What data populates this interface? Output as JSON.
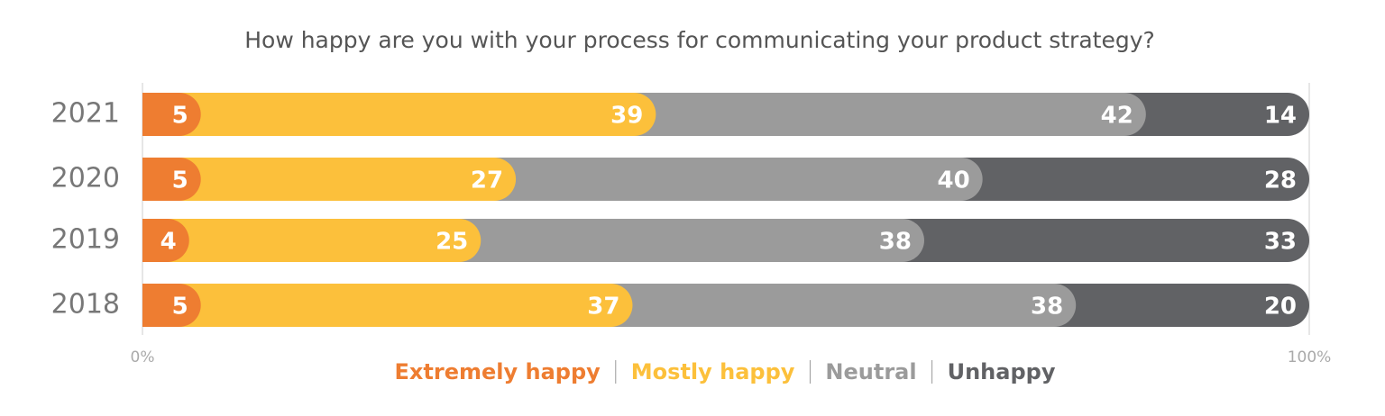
{
  "chart_data": {
    "type": "stacked-bar-horizontal",
    "title": "How happy are you with your process for communicating your product strategy?",
    "categories": [
      "2021",
      "2020",
      "2019",
      "2018"
    ],
    "series": [
      {
        "name": "Extremely happy",
        "color": "#ee7d31",
        "values": [
          5,
          5,
          4,
          5
        ]
      },
      {
        "name": "Mostly happy",
        "color": "#fcc03b",
        "values": [
          39,
          27,
          25,
          37
        ]
      },
      {
        "name": "Neutral",
        "color": "#9b9b9b",
        "values": [
          42,
          40,
          38,
          38
        ]
      },
      {
        "name": "Unhappy",
        "color": "#616265",
        "values": [
          14,
          28,
          33,
          20
        ]
      }
    ],
    "xlim": [
      0,
      100
    ],
    "xticks": [
      {
        "value": 0,
        "label": "0%"
      },
      {
        "value": 100,
        "label": "100%"
      }
    ],
    "legend": "bottom"
  }
}
